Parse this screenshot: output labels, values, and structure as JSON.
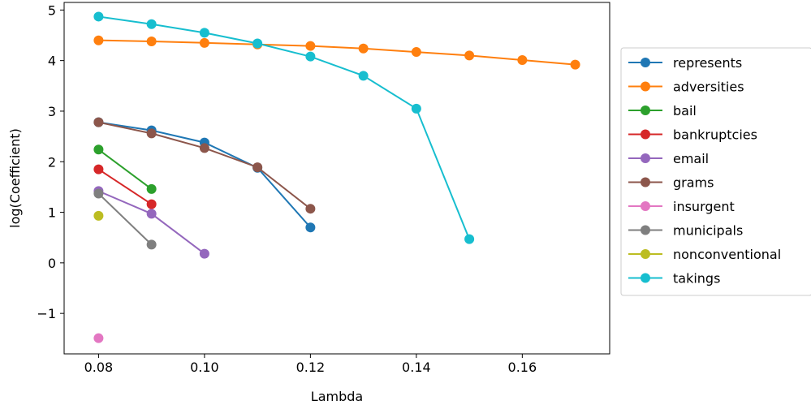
{
  "chart_data": {
    "type": "line",
    "title": "",
    "xlabel": "Lambda",
    "ylabel": "log(Coefficient)",
    "xlim": [
      0.0735,
      0.1765
    ],
    "ylim": [
      -1.8,
      5.15
    ],
    "xticks": [
      0.08,
      0.1,
      0.12,
      0.14,
      0.16
    ],
    "xtick_labels": [
      "0.08",
      "0.10",
      "0.12",
      "0.14",
      "0.16"
    ],
    "yticks": [
      -1,
      0,
      1,
      2,
      3,
      4,
      5
    ],
    "ytick_labels": [
      "−1",
      "0",
      "1",
      "2",
      "3",
      "4",
      "5"
    ],
    "grid": false,
    "legend_position": "right, outside",
    "series": [
      {
        "name": "represents",
        "color": "#1f77b4",
        "x": [
          0.08,
          0.09,
          0.1,
          0.11,
          0.12
        ],
        "y": [
          2.78,
          2.62,
          2.38,
          1.88,
          0.7
        ]
      },
      {
        "name": "adversities",
        "color": "#ff7f0e",
        "x": [
          0.08,
          0.09,
          0.1,
          0.11,
          0.12,
          0.13,
          0.14,
          0.15,
          0.16,
          0.17
        ],
        "y": [
          4.4,
          4.38,
          4.35,
          4.32,
          4.29,
          4.24,
          4.17,
          4.1,
          4.01,
          3.92
        ]
      },
      {
        "name": "bail",
        "color": "#2ca02c",
        "x": [
          0.08,
          0.09
        ],
        "y": [
          2.24,
          1.46
        ]
      },
      {
        "name": "bankruptcies",
        "color": "#d62728",
        "x": [
          0.08,
          0.09
        ],
        "y": [
          1.85,
          1.16
        ]
      },
      {
        "name": "email",
        "color": "#9467bd",
        "x": [
          0.08,
          0.09,
          0.1
        ],
        "y": [
          1.42,
          0.97,
          0.18
        ]
      },
      {
        "name": "grams",
        "color": "#8c564b",
        "x": [
          0.08,
          0.09,
          0.1,
          0.11,
          0.12
        ],
        "y": [
          2.78,
          2.56,
          2.27,
          1.89,
          1.07
        ]
      },
      {
        "name": "insurgent",
        "color": "#e377c2",
        "x": [
          0.08
        ],
        "y": [
          -1.49
        ]
      },
      {
        "name": "municipals",
        "color": "#7f7f7f",
        "x": [
          0.08,
          0.09
        ],
        "y": [
          1.37,
          0.36
        ]
      },
      {
        "name": "nonconventional",
        "color": "#bcbd22",
        "x": [
          0.08
        ],
        "y": [
          0.93
        ]
      },
      {
        "name": "takings",
        "color": "#17becf",
        "x": [
          0.08,
          0.09,
          0.1,
          0.11,
          0.12,
          0.13,
          0.14,
          0.15
        ],
        "y": [
          4.87,
          4.72,
          4.55,
          4.34,
          4.08,
          3.7,
          3.05,
          0.47
        ]
      }
    ]
  }
}
